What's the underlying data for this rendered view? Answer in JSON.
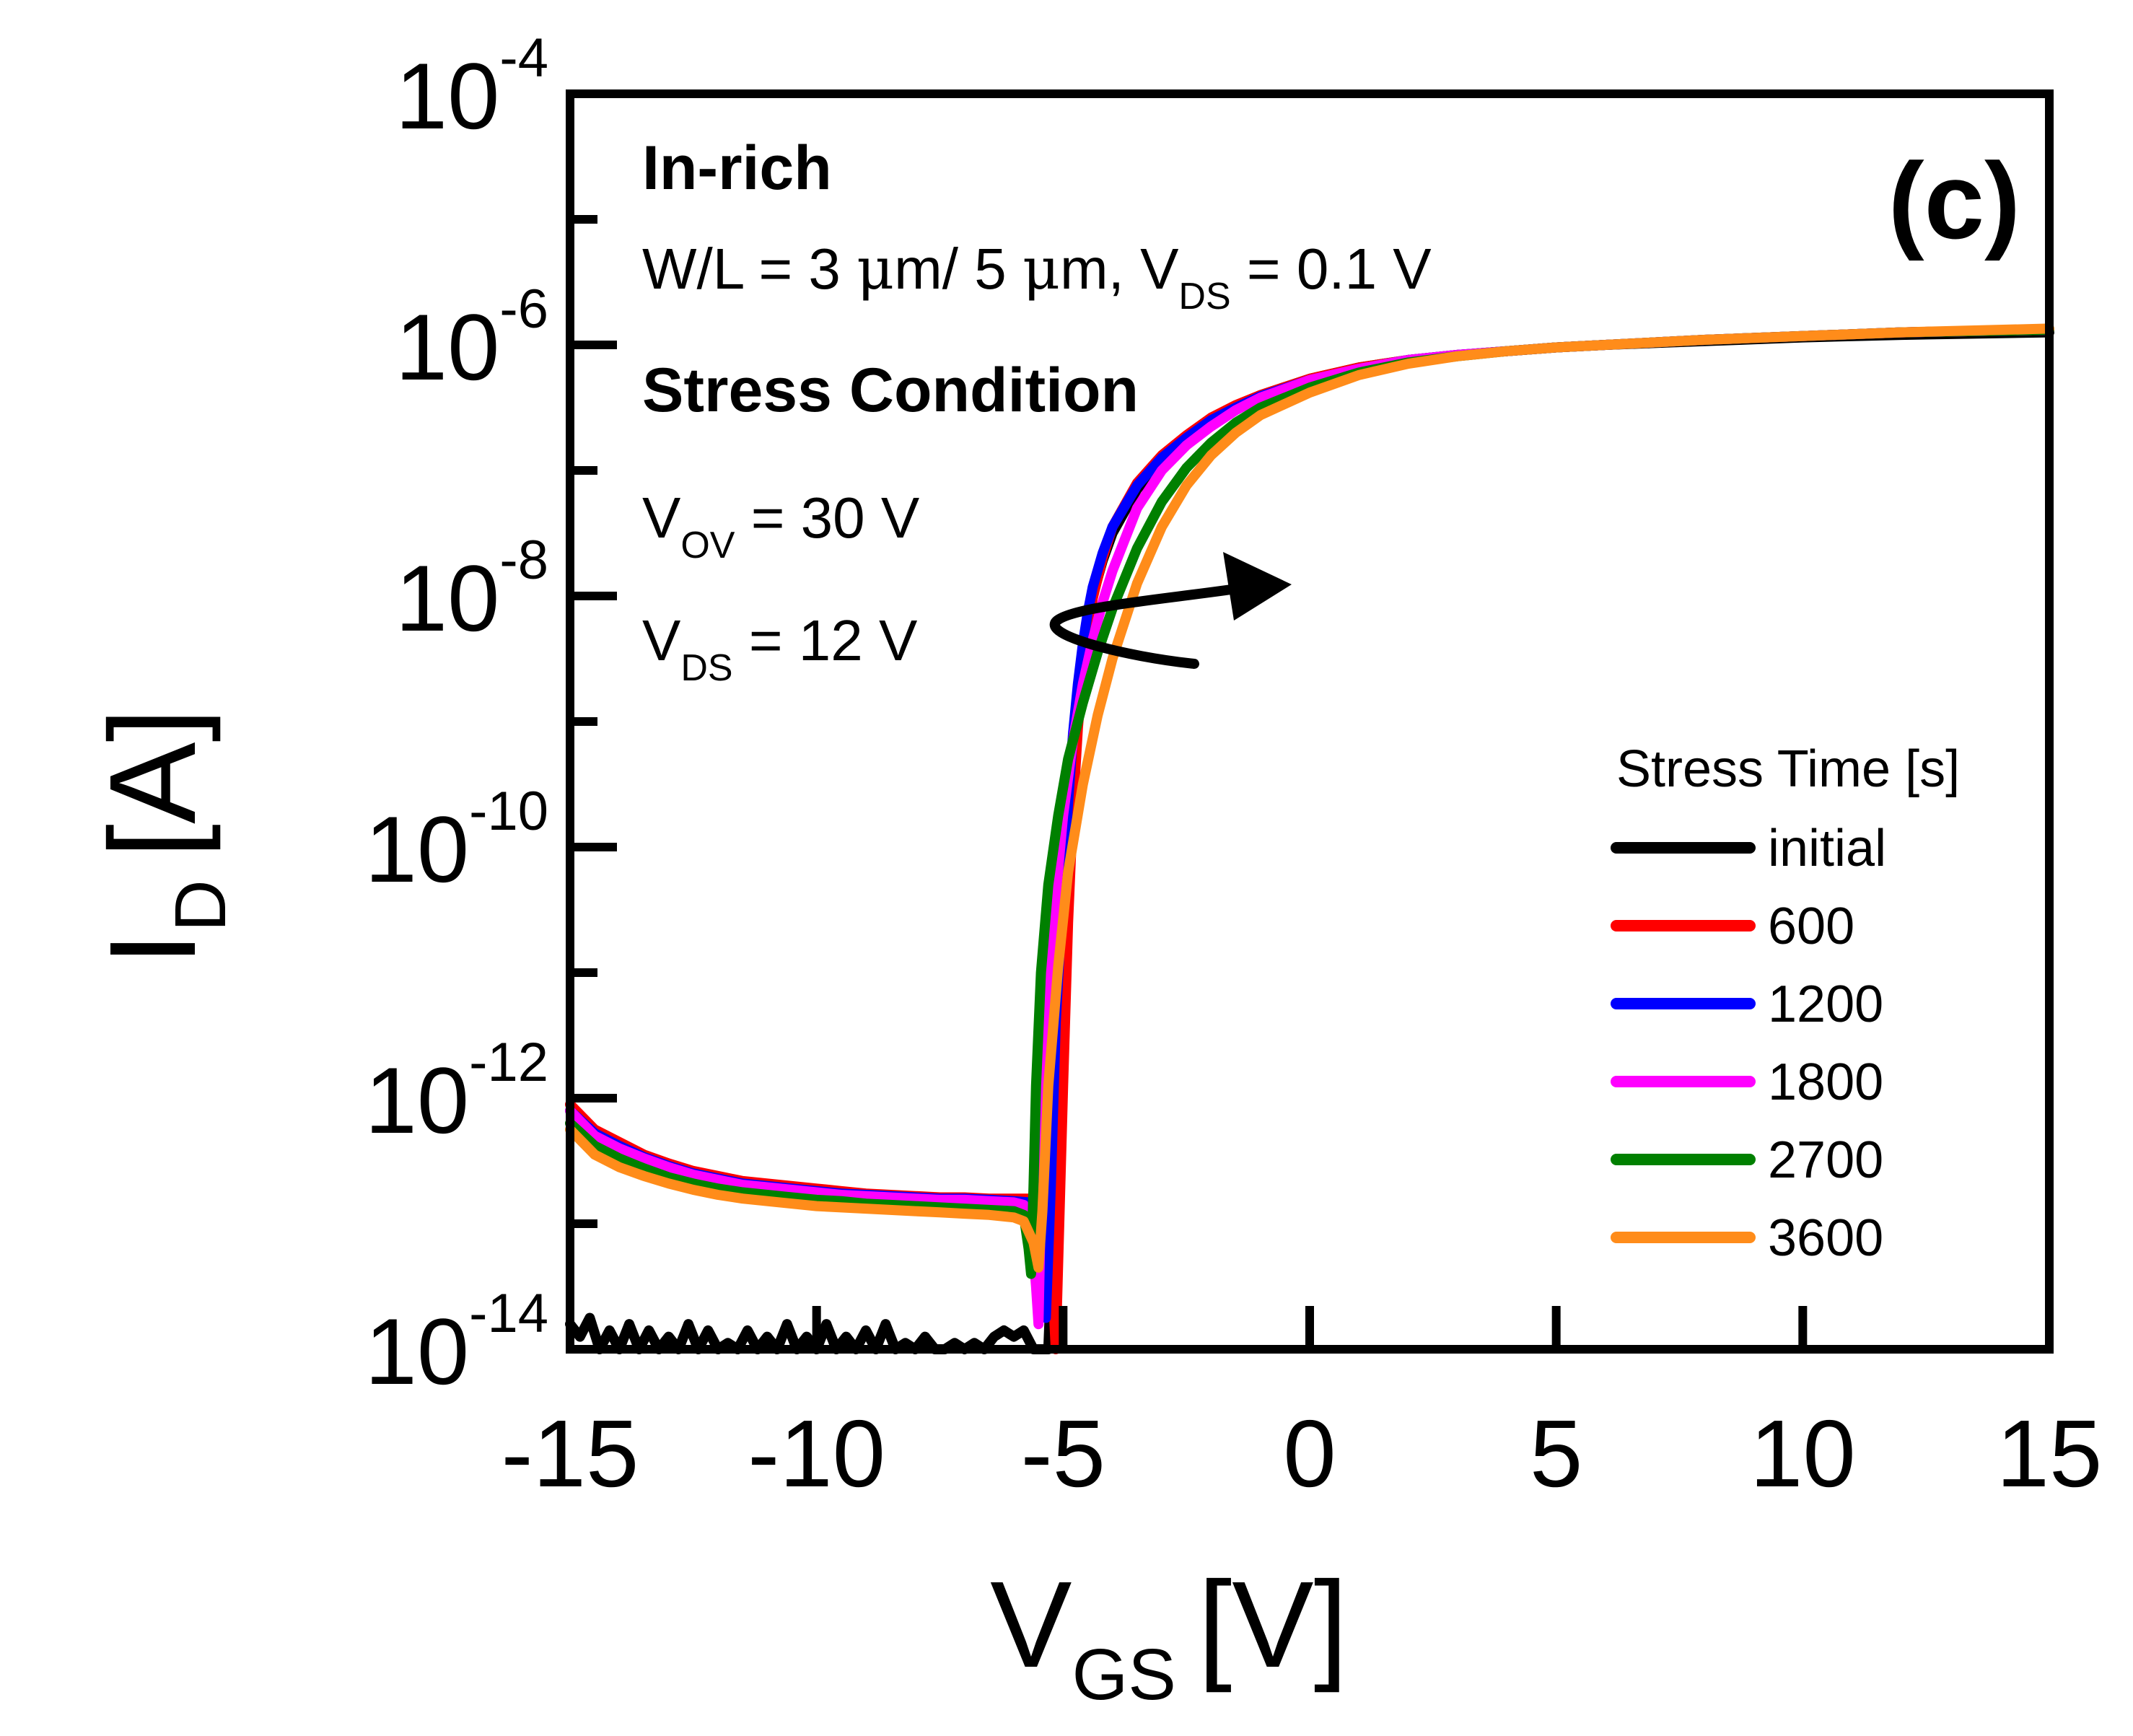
{
  "chart_data": {
    "type": "line",
    "panel_label": "(c)",
    "xlabel": {
      "main": "V",
      "sub": "GS",
      "unit": "[V]"
    },
    "ylabel": {
      "main": "I",
      "sub": "D",
      "unit": "[A]"
    },
    "xlim": [
      -15,
      15
    ],
    "ylim": [
      1e-14,
      0.0001
    ],
    "yscale": "log",
    "x_ticks": [
      -15,
      -10,
      -5,
      0,
      5,
      10,
      15
    ],
    "x_tick_labels": [
      "-15",
      "-10",
      "-5",
      "0",
      "5",
      "10",
      "15"
    ],
    "y_ticks": [
      -14,
      -12,
      -10,
      -8,
      -6,
      -4
    ],
    "y_tick_base": "10",
    "y_tick_exponents": [
      "-14",
      "-12",
      "-10",
      "-8",
      "-6",
      "-4"
    ],
    "annotations": {
      "material": "In-rich",
      "geometry": {
        "text1": "W/L = 3 ",
        "mu1": "μ",
        "text2": "m/ 5 ",
        "mu2": "μ",
        "text3": "m, V",
        "sub": "DS",
        "text4": " = 0.1 V"
      },
      "stress_title": "Stress Condition",
      "vov": {
        "main": "V",
        "sub": "OV",
        "rest": " = 30 V"
      },
      "vds": {
        "main": "V",
        "sub": "DS",
        "rest": " = 12 V"
      }
    },
    "legend": {
      "title": "Stress Time [s]",
      "placement": "lower-right"
    },
    "series": [
      {
        "name": "initial",
        "color": "#000000",
        "x": [
          -15,
          -14.8,
          -14.6,
          -14.4,
          -14.2,
          -14,
          -13.8,
          -13.6,
          -13.4,
          -13.2,
          -13,
          -12.8,
          -12.6,
          -12.4,
          -12.2,
          -12,
          -11.8,
          -11.6,
          -11.4,
          -11.2,
          -11,
          -10.8,
          -10.6,
          -10.4,
          -10.2,
          -10,
          -9.8,
          -9.6,
          -9.4,
          -9.2,
          -9,
          -8.8,
          -8.6,
          -8.4,
          -8.2,
          -8,
          -7.8,
          -7.6,
          -7.4,
          -7.2,
          -7,
          -6.8,
          -6.6,
          -6.4,
          -6.2,
          -6,
          -5.8,
          -5.6,
          -5.4,
          -5.3,
          -5.2,
          -5.1,
          -5.0,
          -4.9,
          -4.8,
          -4.7,
          -4.6,
          -4.5,
          -4.4,
          -4.2,
          -4.0,
          -3.5,
          -3.0,
          -2.5,
          -2.0,
          -1.5,
          -1.0,
          0,
          1,
          2,
          3,
          4,
          5,
          6,
          8,
          10,
          12,
          15
        ],
        "y": [
          -13.8,
          -13.9,
          -13.75,
          -14.0,
          -13.85,
          -14.0,
          -13.8,
          -14.0,
          -13.85,
          -14.0,
          -13.9,
          -14.0,
          -13.8,
          -14.0,
          -13.85,
          -14.0,
          -13.95,
          -14.0,
          -13.85,
          -14.0,
          -13.9,
          -14.0,
          -13.8,
          -14.0,
          -13.9,
          -14.0,
          -13.8,
          -14.0,
          -13.9,
          -14.0,
          -13.85,
          -14.0,
          -13.8,
          -14.0,
          -13.95,
          -14.0,
          -13.9,
          -14.0,
          -14.0,
          -13.95,
          -14.0,
          -13.95,
          -14.0,
          -13.9,
          -13.85,
          -13.9,
          -13.85,
          -14.0,
          -14.0,
          -14.0,
          -13.0,
          -11.9,
          -11.0,
          -10.2,
          -9.5,
          -8.95,
          -8.55,
          -8.25,
          -8.0,
          -7.72,
          -7.5,
          -7.15,
          -6.92,
          -6.74,
          -6.6,
          -6.49,
          -6.4,
          -6.27,
          -6.18,
          -6.12,
          -6.08,
          -6.05,
          -6.02,
          -6.0,
          -5.97,
          -5.94,
          -5.92,
          -5.9
        ]
      },
      {
        "name": "600",
        "color": "#ff0000",
        "x": [
          -15,
          -14.5,
          -14,
          -13.5,
          -13,
          -12.5,
          -12,
          -11.5,
          -11,
          -10.5,
          -10,
          -9.5,
          -9,
          -8.5,
          -8,
          -7.5,
          -7,
          -6.5,
          -6,
          -5.6,
          -5.4,
          -5.3,
          -5.2,
          -5.15,
          -5.1,
          -5.0,
          -4.9,
          -4.8,
          -4.7,
          -4.6,
          -4.5,
          -4.4,
          -4.2,
          -4.0,
          -3.5,
          -3.0,
          -2.5,
          -2.0,
          -1.5,
          -1.0,
          0,
          1,
          2,
          3,
          4,
          5,
          6,
          8,
          10,
          12,
          15
        ],
        "y": [
          -12.05,
          -12.25,
          -12.35,
          -12.45,
          -12.52,
          -12.58,
          -12.62,
          -12.66,
          -12.68,
          -12.7,
          -12.72,
          -12.74,
          -12.76,
          -12.77,
          -12.78,
          -12.79,
          -12.79,
          -12.8,
          -12.8,
          -12.8,
          -12.82,
          -13.1,
          -13.6,
          -14.0,
          -13.3,
          -11.9,
          -10.6,
          -9.7,
          -9.05,
          -8.6,
          -8.28,
          -8.02,
          -7.7,
          -7.45,
          -7.1,
          -6.88,
          -6.72,
          -6.58,
          -6.48,
          -6.4,
          -6.27,
          -6.18,
          -6.12,
          -6.08,
          -6.05,
          -6.02,
          -6.0,
          -5.96,
          -5.93,
          -5.9,
          -5.88
        ]
      },
      {
        "name": "1200",
        "color": "#0000ff",
        "x": [
          -15,
          -14.5,
          -14,
          -13.5,
          -13,
          -12.5,
          -12,
          -11.5,
          -11,
          -10.5,
          -10,
          -9.5,
          -9,
          -8.5,
          -8,
          -7.5,
          -7,
          -6.5,
          -6,
          -5.7,
          -5.55,
          -5.45,
          -5.35,
          -5.25,
          -5.15,
          -5.0,
          -4.9,
          -4.8,
          -4.7,
          -4.6,
          -4.5,
          -4.4,
          -4.2,
          -4.0,
          -3.5,
          -3.0,
          -2.5,
          -2.0,
          -1.5,
          -1.0,
          0,
          1,
          2,
          3,
          4,
          5,
          6,
          8,
          10,
          12,
          15
        ],
        "y": [
          -12.1,
          -12.28,
          -12.38,
          -12.47,
          -12.54,
          -12.6,
          -12.64,
          -12.68,
          -12.7,
          -12.72,
          -12.74,
          -12.76,
          -12.77,
          -12.78,
          -12.79,
          -12.8,
          -12.8,
          -12.81,
          -12.82,
          -12.83,
          -12.9,
          -13.3,
          -13.75,
          -12.7,
          -11.4,
          -10.3,
          -9.65,
          -9.1,
          -8.7,
          -8.38,
          -8.13,
          -7.93,
          -7.66,
          -7.45,
          -7.12,
          -6.9,
          -6.74,
          -6.6,
          -6.5,
          -6.41,
          -6.28,
          -6.19,
          -6.12,
          -6.08,
          -6.05,
          -6.02,
          -6.0,
          -5.96,
          -5.93,
          -5.9,
          -5.88
        ]
      },
      {
        "name": "1800",
        "color": "#ff00ff",
        "x": [
          -15,
          -14.5,
          -14,
          -13.5,
          -13,
          -12.5,
          -12,
          -11.5,
          -11,
          -10.5,
          -10,
          -9.5,
          -9,
          -8.5,
          -8,
          -7.5,
          -7,
          -6.5,
          -6,
          -5.8,
          -5.65,
          -5.55,
          -5.5,
          -5.45,
          -5.35,
          -5.2,
          -5.0,
          -4.8,
          -4.6,
          -4.4,
          -4.2,
          -4.0,
          -3.5,
          -3.0,
          -2.5,
          -2.0,
          -1.5,
          -1.0,
          0,
          1,
          2,
          3,
          4,
          5,
          6,
          8,
          10,
          12,
          15
        ],
        "y": [
          -12.1,
          -12.3,
          -12.4,
          -12.48,
          -12.55,
          -12.61,
          -12.65,
          -12.69,
          -12.71,
          -12.73,
          -12.75,
          -12.77,
          -12.78,
          -12.79,
          -12.8,
          -12.81,
          -12.81,
          -12.82,
          -12.83,
          -12.85,
          -13.0,
          -13.5,
          -13.8,
          -12.8,
          -11.6,
          -10.6,
          -9.75,
          -9.15,
          -8.7,
          -8.35,
          -8.05,
          -7.8,
          -7.3,
          -7.0,
          -6.8,
          -6.65,
          -6.52,
          -6.42,
          -6.28,
          -6.19,
          -6.12,
          -6.08,
          -6.05,
          -6.02,
          -6.0,
          -5.96,
          -5.93,
          -5.9,
          -5.88
        ]
      },
      {
        "name": "2700",
        "color": "#008000",
        "x": [
          -15,
          -14.5,
          -14,
          -13.5,
          -13,
          -12.5,
          -12,
          -11.5,
          -11,
          -10.5,
          -10,
          -9.5,
          -9,
          -8.5,
          -8,
          -7.5,
          -7,
          -6.5,
          -6,
          -5.8,
          -5.7,
          -5.65,
          -5.6,
          -5.55,
          -5.45,
          -5.3,
          -5.1,
          -4.9,
          -4.6,
          -4.3,
          -4.0,
          -3.5,
          -3.0,
          -2.5,
          -2.0,
          -1.5,
          -1.0,
          0,
          1,
          2,
          3,
          4,
          5,
          6,
          8,
          10,
          12,
          15
        ],
        "y": [
          -12.2,
          -12.38,
          -12.48,
          -12.56,
          -12.63,
          -12.68,
          -12.72,
          -12.75,
          -12.77,
          -12.79,
          -12.81,
          -12.82,
          -12.84,
          -12.85,
          -12.86,
          -12.87,
          -12.88,
          -12.89,
          -12.9,
          -12.93,
          -13.2,
          -13.4,
          -12.7,
          -11.9,
          -11.0,
          -10.3,
          -9.75,
          -9.3,
          -8.85,
          -8.45,
          -8.1,
          -7.62,
          -7.25,
          -6.98,
          -6.78,
          -6.62,
          -6.5,
          -6.34,
          -6.22,
          -6.14,
          -6.09,
          -6.05,
          -6.02,
          -6.0,
          -5.96,
          -5.93,
          -5.9,
          -5.88
        ]
      },
      {
        "name": "3600",
        "color": "#ff8c1a",
        "x": [
          -15,
          -14.5,
          -14,
          -13.5,
          -13,
          -12.5,
          -12,
          -11.5,
          -11,
          -10.5,
          -10,
          -9.5,
          -9,
          -8.5,
          -8,
          -7.5,
          -7,
          -6.5,
          -6,
          -5.8,
          -5.6,
          -5.5,
          -5.42,
          -5.3,
          -5.1,
          -4.9,
          -4.6,
          -4.3,
          -4.0,
          -3.5,
          -3.0,
          -2.5,
          -2.0,
          -1.5,
          -1.0,
          0,
          1,
          2,
          3,
          4,
          5,
          6,
          8,
          10,
          12,
          15
        ],
        "y": [
          -12.25,
          -12.45,
          -12.55,
          -12.62,
          -12.68,
          -12.73,
          -12.77,
          -12.8,
          -12.82,
          -12.84,
          -12.86,
          -12.87,
          -12.88,
          -12.89,
          -12.9,
          -12.91,
          -12.92,
          -12.93,
          -12.95,
          -12.98,
          -13.15,
          -13.35,
          -12.9,
          -11.9,
          -10.95,
          -10.2,
          -9.5,
          -8.95,
          -8.5,
          -7.9,
          -7.45,
          -7.12,
          -6.88,
          -6.7,
          -6.56,
          -6.38,
          -6.24,
          -6.15,
          -6.09,
          -6.05,
          -6.02,
          -6.0,
          -5.96,
          -5.93,
          -5.9,
          -5.87
        ]
      }
    ]
  }
}
